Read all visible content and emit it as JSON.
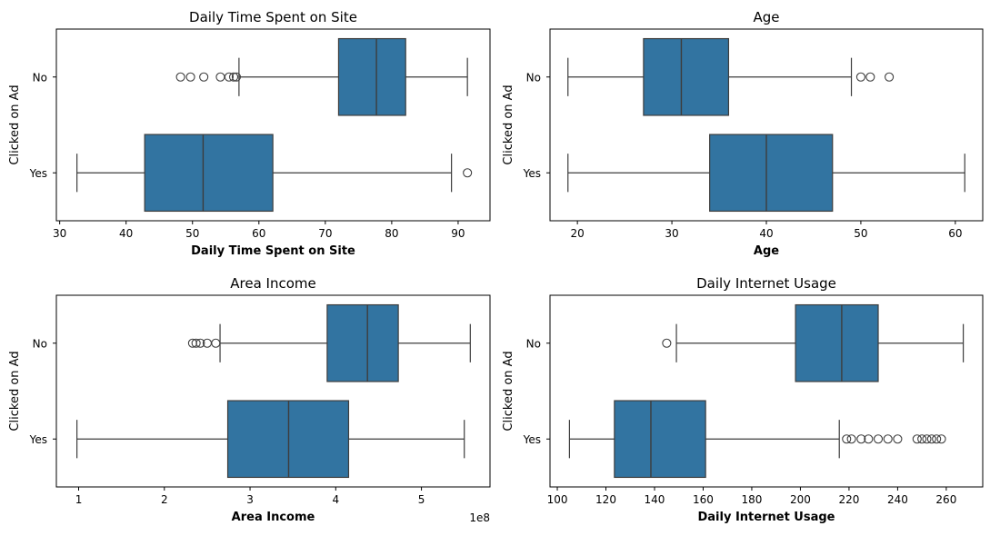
{
  "colors": {
    "box_fill": "#3274a1",
    "line": "#3d3d3d",
    "frame": "#000000"
  },
  "chart_data": [
    {
      "type": "box",
      "orientation": "horizontal",
      "title": "Daily Time Spent on Site",
      "xlabel": "Daily Time Spent on Site",
      "ylabel": "Clicked on Ad",
      "xlim": [
        29.5,
        94.8
      ],
      "xticks": [
        "30",
        "40",
        "50",
        "60",
        "70",
        "80",
        "90"
      ],
      "tick_values": [
        30,
        40,
        50,
        60,
        70,
        80,
        90
      ],
      "offset_text": "",
      "categories": [
        "No",
        "Yes"
      ],
      "boxes": [
        {
          "name": "No",
          "whisker_low": 57.0,
          "q1": 72.0,
          "median": 77.7,
          "q3": 82.1,
          "whisker_high": 91.4,
          "outliers": [
            48.2,
            49.7,
            51.7,
            54.2,
            55.5,
            56.2,
            56.6
          ]
        },
        {
          "name": "Yes",
          "whisker_low": 32.6,
          "q1": 42.8,
          "median": 51.6,
          "q3": 62.1,
          "whisker_high": 89.0,
          "outliers": [
            91.4
          ]
        }
      ]
    },
    {
      "type": "box",
      "orientation": "horizontal",
      "title": "Age",
      "xlabel": "Age",
      "ylabel": "Clicked on Ad",
      "xlim": [
        17.1,
        62.9
      ],
      "xticks": [
        "20",
        "30",
        "40",
        "50",
        "60"
      ],
      "tick_values": [
        20,
        30,
        40,
        50,
        60
      ],
      "offset_text": "",
      "categories": [
        "No",
        "Yes"
      ],
      "boxes": [
        {
          "name": "No",
          "whisker_low": 19,
          "q1": 27,
          "median": 31,
          "q3": 36,
          "whisker_high": 49,
          "outliers": [
            50,
            51,
            53
          ]
        },
        {
          "name": "Yes",
          "whisker_low": 19,
          "q1": 34,
          "median": 40,
          "q3": 47,
          "whisker_high": 61,
          "outliers": []
        }
      ]
    },
    {
      "type": "box",
      "orientation": "horizontal",
      "title": "Area Income",
      "xlabel": "Area Income",
      "ylabel": "Clicked on Ad",
      "xlim": [
        0.74,
        5.8
      ],
      "xticks": [
        "1",
        "2",
        "3",
        "4",
        "5"
      ],
      "tick_values": [
        1,
        2,
        3,
        4,
        5
      ],
      "offset_text": "1e8",
      "categories": [
        "No",
        "Yes"
      ],
      "boxes": [
        {
          "name": "No",
          "whisker_low": 2.65,
          "q1": 3.9,
          "median": 4.37,
          "q3": 4.73,
          "whisker_high": 5.57,
          "outliers": [
            2.33,
            2.37,
            2.42,
            2.5,
            2.6
          ]
        },
        {
          "name": "Yes",
          "whisker_low": 0.98,
          "q1": 2.74,
          "median": 3.45,
          "q3": 4.15,
          "whisker_high": 5.5,
          "outliers": []
        }
      ]
    },
    {
      "type": "box",
      "orientation": "horizontal",
      "title": "Daily Internet Usage",
      "xlabel": "Daily Internet Usage",
      "ylabel": "Clicked on Ad",
      "xlim": [
        97,
        275
      ],
      "xticks": [
        "100",
        "120",
        "140",
        "160",
        "180",
        "200",
        "220",
        "240",
        "260"
      ],
      "tick_values": [
        100,
        120,
        140,
        160,
        180,
        200,
        220,
        240,
        260
      ],
      "offset_text": "",
      "categories": [
        "No",
        "Yes"
      ],
      "boxes": [
        {
          "name": "No",
          "whisker_low": 149,
          "q1": 198,
          "median": 217,
          "q3": 232,
          "whisker_high": 267,
          "outliers": [
            145
          ]
        },
        {
          "name": "Yes",
          "whisker_low": 105,
          "q1": 123.5,
          "median": 138.5,
          "q3": 161,
          "whisker_high": 216,
          "outliers": [
            219,
            221,
            225,
            228,
            232,
            236,
            240,
            248,
            250,
            252,
            254,
            256,
            258
          ]
        }
      ]
    }
  ]
}
